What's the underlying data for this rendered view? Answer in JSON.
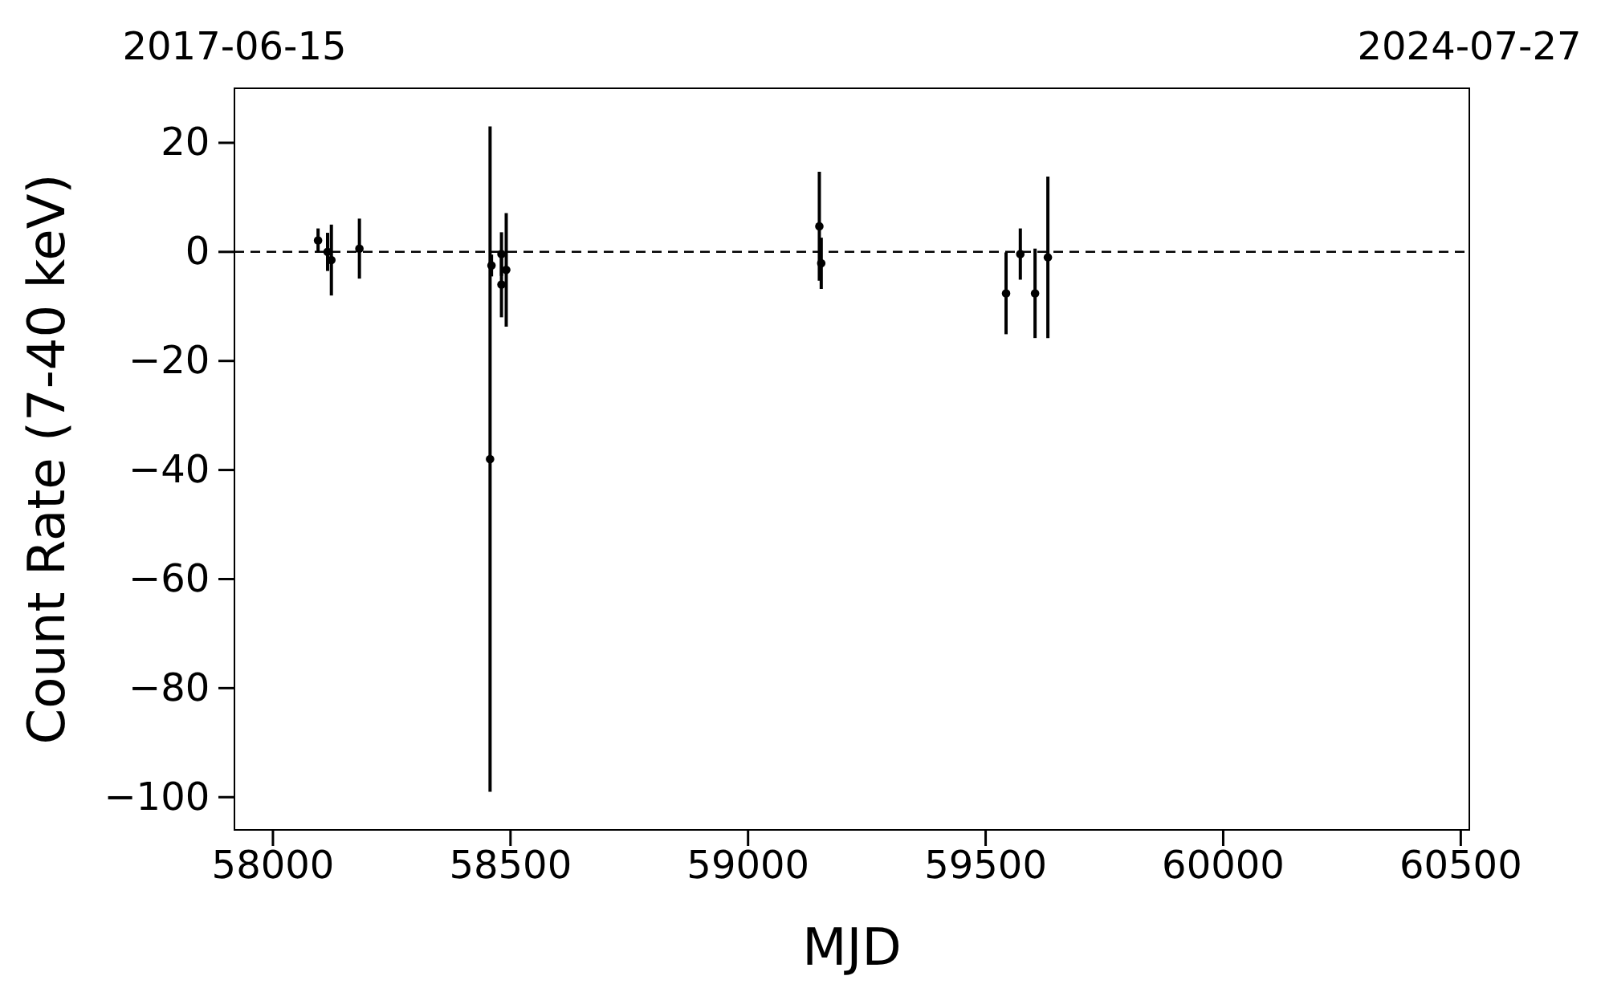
{
  "chart_data": {
    "type": "scatter",
    "xlabel": "MJD",
    "ylabel": "Count Rate (7-40 keV)",
    "x": [
      58095,
      58115,
      58123,
      58182,
      58457,
      58460,
      58481,
      58481,
      58491,
      59150,
      59154,
      59543,
      59573,
      59604,
      59631
    ],
    "values": [
      2.1,
      0,
      -1.5,
      0.6,
      -38,
      -2.5,
      -0.4,
      -6,
      -3.3,
      4.7,
      -2.1,
      -7.6,
      -0.4,
      -7.6,
      -1
    ],
    "errors": [
      2.2,
      3.5,
      6.5,
      5.5,
      61,
      2,
      4,
      6,
      10.4,
      10,
      4.7,
      7.5,
      4.7,
      8.2,
      14.8
    ],
    "color": "#000000",
    "marker": "circle",
    "xlim": [
      57919,
      60518
    ],
    "xticks": [
      58000,
      58500,
      59000,
      59500,
      60000,
      60500
    ],
    "x2lim": [
      "2017-06-15",
      "2024-07-27"
    ],
    "x2ticks": [
      "2017-06-15",
      "2024-07-27"
    ],
    "ylim": [
      -106,
      30
    ],
    "yticks": [
      {
        "value": -100,
        "label": "−100"
      },
      {
        "value": -80,
        "label": "−80"
      },
      {
        "value": -60,
        "label": "−60"
      },
      {
        "value": -40,
        "label": "−40"
      },
      {
        "value": -20,
        "label": "−20"
      },
      0,
      20
    ],
    "ref_lines": [
      {
        "axis": "y",
        "value": 0,
        "color": "#000000",
        "line_style": "dashed"
      }
    ],
    "grid": false
  }
}
